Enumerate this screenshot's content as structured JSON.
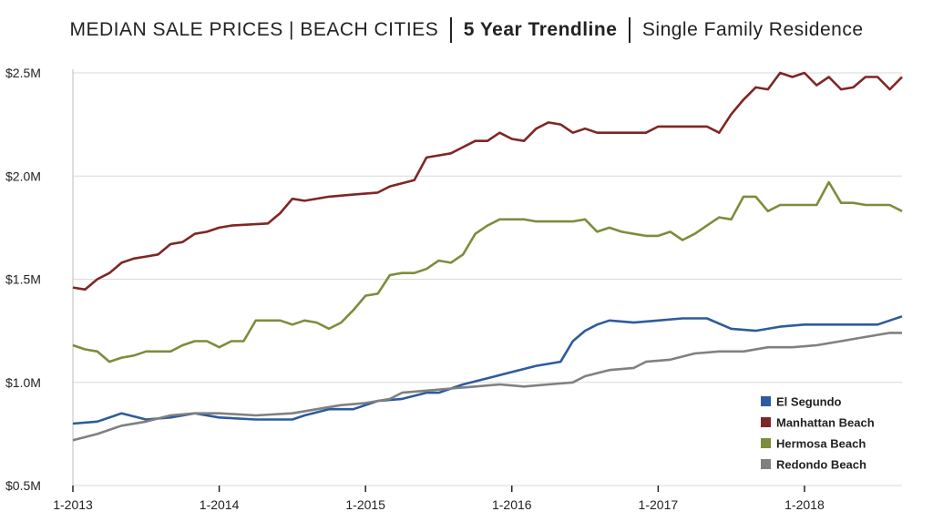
{
  "title": {
    "part1": "MEDIAN SALE PRICES | BEACH CITIES",
    "part2": "5 Year Trendline",
    "part3": "Single Family Residence"
  },
  "chart_data": {
    "type": "line",
    "title": "MEDIAN SALE PRICES | BEACH CITIES | 5 Year Trendline | Single Family Residence",
    "xlabel": "",
    "ylabel": "",
    "x_start": "2013-01",
    "x_end": "2018-09",
    "x_ticks": [
      {
        "value": "2013-01",
        "label": "1-2013"
      },
      {
        "value": "2014-01",
        "label": "1-2014"
      },
      {
        "value": "2015-01",
        "label": "1-2015"
      },
      {
        "value": "2016-01",
        "label": "1-2016"
      },
      {
        "value": "2017-01",
        "label": "1-2017"
      },
      {
        "value": "2018-01",
        "label": "1-2018"
      }
    ],
    "ylim": [
      0.5,
      2.5
    ],
    "y_ticks": [
      {
        "value": 2.5,
        "label": "$2.5M"
      },
      {
        "value": 2.0,
        "label": "$2.0M"
      },
      {
        "value": 1.5,
        "label": "$1.5M"
      },
      {
        "value": 1.0,
        "label": "$1.0M"
      },
      {
        "value": 0.5,
        "label": "$0.5M"
      }
    ],
    "grid": true,
    "legend": "bottom-right",
    "series": [
      {
        "name": "El Segundo",
        "color": "#2e5b9c",
        "points": [
          [
            "2013-01",
            0.8
          ],
          [
            "2013-03",
            0.81
          ],
          [
            "2013-05",
            0.85
          ],
          [
            "2013-07",
            0.82
          ],
          [
            "2013-09",
            0.83
          ],
          [
            "2013-11",
            0.85
          ],
          [
            "2014-01",
            0.83
          ],
          [
            "2014-04",
            0.82
          ],
          [
            "2014-07",
            0.82
          ],
          [
            "2014-08",
            0.84
          ],
          [
            "2014-10",
            0.87
          ],
          [
            "2014-12",
            0.87
          ],
          [
            "2015-02",
            0.91
          ],
          [
            "2015-04",
            0.92
          ],
          [
            "2015-06",
            0.95
          ],
          [
            "2015-07",
            0.95
          ],
          [
            "2015-09",
            0.99
          ],
          [
            "2015-11",
            1.02
          ],
          [
            "2016-01",
            1.05
          ],
          [
            "2016-03",
            1.08
          ],
          [
            "2016-05",
            1.1
          ],
          [
            "2016-06",
            1.2
          ],
          [
            "2016-07",
            1.25
          ],
          [
            "2016-08",
            1.28
          ],
          [
            "2016-09",
            1.3
          ],
          [
            "2016-11",
            1.29
          ],
          [
            "2017-01",
            1.3
          ],
          [
            "2017-03",
            1.31
          ],
          [
            "2017-05",
            1.31
          ],
          [
            "2017-07",
            1.26
          ],
          [
            "2017-09",
            1.25
          ],
          [
            "2017-11",
            1.27
          ],
          [
            "2018-01",
            1.28
          ],
          [
            "2018-03",
            1.28
          ],
          [
            "2018-05",
            1.28
          ],
          [
            "2018-07",
            1.28
          ],
          [
            "2018-08",
            1.3
          ],
          [
            "2018-09",
            1.32
          ]
        ]
      },
      {
        "name": "Manhattan Beach",
        "color": "#7f2624",
        "points": [
          [
            "2013-01",
            1.46
          ],
          [
            "2013-02",
            1.45
          ],
          [
            "2013-03",
            1.5
          ],
          [
            "2013-04",
            1.53
          ],
          [
            "2013-05",
            1.58
          ],
          [
            "2013-06",
            1.6
          ],
          [
            "2013-07",
            1.61
          ],
          [
            "2013-08",
            1.62
          ],
          [
            "2013-09",
            1.67
          ],
          [
            "2013-10",
            1.68
          ],
          [
            "2013-11",
            1.72
          ],
          [
            "2013-12",
            1.73
          ],
          [
            "2014-01",
            1.75
          ],
          [
            "2014-02",
            1.76
          ],
          [
            "2014-05",
            1.77
          ],
          [
            "2014-06",
            1.82
          ],
          [
            "2014-07",
            1.89
          ],
          [
            "2014-08",
            1.88
          ],
          [
            "2014-10",
            1.9
          ],
          [
            "2014-12",
            1.91
          ],
          [
            "2015-02",
            1.92
          ],
          [
            "2015-03",
            1.95
          ],
          [
            "2015-05",
            1.98
          ],
          [
            "2015-06",
            2.09
          ],
          [
            "2015-07",
            2.1
          ],
          [
            "2015-08",
            2.11
          ],
          [
            "2015-09",
            2.14
          ],
          [
            "2015-10",
            2.17
          ],
          [
            "2015-11",
            2.17
          ],
          [
            "2015-12",
            2.21
          ],
          [
            "2016-01",
            2.18
          ],
          [
            "2016-02",
            2.17
          ],
          [
            "2016-03",
            2.23
          ],
          [
            "2016-04",
            2.26
          ],
          [
            "2016-05",
            2.25
          ],
          [
            "2016-06",
            2.21
          ],
          [
            "2016-07",
            2.23
          ],
          [
            "2016-08",
            2.21
          ],
          [
            "2016-10",
            2.21
          ],
          [
            "2016-12",
            2.21
          ],
          [
            "2017-01",
            2.24
          ],
          [
            "2017-03",
            2.24
          ],
          [
            "2017-05",
            2.24
          ],
          [
            "2017-06",
            2.21
          ],
          [
            "2017-07",
            2.3
          ],
          [
            "2017-08",
            2.37
          ],
          [
            "2017-09",
            2.43
          ],
          [
            "2017-10",
            2.42
          ],
          [
            "2017-11",
            2.5
          ],
          [
            "2017-12",
            2.48
          ],
          [
            "2018-01",
            2.5
          ],
          [
            "2018-02",
            2.44
          ],
          [
            "2018-03",
            2.48
          ],
          [
            "2018-04",
            2.42
          ],
          [
            "2018-05",
            2.43
          ],
          [
            "2018-06",
            2.48
          ],
          [
            "2018-07",
            2.48
          ],
          [
            "2018-08",
            2.42
          ],
          [
            "2018-09",
            2.48
          ]
        ]
      },
      {
        "name": "Hermosa Beach",
        "color": "#7b8d3c",
        "points": [
          [
            "2013-01",
            1.18
          ],
          [
            "2013-02",
            1.16
          ],
          [
            "2013-03",
            1.15
          ],
          [
            "2013-04",
            1.1
          ],
          [
            "2013-05",
            1.12
          ],
          [
            "2013-06",
            1.13
          ],
          [
            "2013-07",
            1.15
          ],
          [
            "2013-08",
            1.15
          ],
          [
            "2013-09",
            1.15
          ],
          [
            "2013-10",
            1.18
          ],
          [
            "2013-11",
            1.2
          ],
          [
            "2013-12",
            1.2
          ],
          [
            "2014-01",
            1.17
          ],
          [
            "2014-02",
            1.2
          ],
          [
            "2014-03",
            1.2
          ],
          [
            "2014-04",
            1.3
          ],
          [
            "2014-05",
            1.3
          ],
          [
            "2014-06",
            1.3
          ],
          [
            "2014-07",
            1.28
          ],
          [
            "2014-08",
            1.3
          ],
          [
            "2014-09",
            1.29
          ],
          [
            "2014-10",
            1.26
          ],
          [
            "2014-11",
            1.29
          ],
          [
            "2014-12",
            1.35
          ],
          [
            "2015-01",
            1.42
          ],
          [
            "2015-02",
            1.43
          ],
          [
            "2015-03",
            1.52
          ],
          [
            "2015-04",
            1.53
          ],
          [
            "2015-05",
            1.53
          ],
          [
            "2015-06",
            1.55
          ],
          [
            "2015-07",
            1.59
          ],
          [
            "2015-08",
            1.58
          ],
          [
            "2015-09",
            1.62
          ],
          [
            "2015-10",
            1.72
          ],
          [
            "2015-11",
            1.76
          ],
          [
            "2015-12",
            1.79
          ],
          [
            "2016-01",
            1.79
          ],
          [
            "2016-02",
            1.79
          ],
          [
            "2016-03",
            1.78
          ],
          [
            "2016-04",
            1.78
          ],
          [
            "2016-05",
            1.78
          ],
          [
            "2016-06",
            1.78
          ],
          [
            "2016-07",
            1.79
          ],
          [
            "2016-08",
            1.73
          ],
          [
            "2016-09",
            1.75
          ],
          [
            "2016-10",
            1.73
          ],
          [
            "2016-11",
            1.72
          ],
          [
            "2016-12",
            1.71
          ],
          [
            "2017-01",
            1.71
          ],
          [
            "2017-02",
            1.73
          ],
          [
            "2017-03",
            1.69
          ],
          [
            "2017-04",
            1.72
          ],
          [
            "2017-05",
            1.76
          ],
          [
            "2017-06",
            1.8
          ],
          [
            "2017-07",
            1.79
          ],
          [
            "2017-08",
            1.9
          ],
          [
            "2017-09",
            1.9
          ],
          [
            "2017-10",
            1.83
          ],
          [
            "2017-11",
            1.86
          ],
          [
            "2017-12",
            1.86
          ],
          [
            "2018-01",
            1.86
          ],
          [
            "2018-02",
            1.86
          ],
          [
            "2018-03",
            1.97
          ],
          [
            "2018-04",
            1.87
          ],
          [
            "2018-05",
            1.87
          ],
          [
            "2018-06",
            1.86
          ],
          [
            "2018-07",
            1.86
          ],
          [
            "2018-08",
            1.86
          ],
          [
            "2018-09",
            1.83
          ]
        ]
      },
      {
        "name": "Redondo Beach",
        "color": "#808080",
        "points": [
          [
            "2013-01",
            0.72
          ],
          [
            "2013-03",
            0.75
          ],
          [
            "2013-05",
            0.79
          ],
          [
            "2013-07",
            0.81
          ],
          [
            "2013-09",
            0.84
          ],
          [
            "2013-11",
            0.85
          ],
          [
            "2014-01",
            0.85
          ],
          [
            "2014-04",
            0.84
          ],
          [
            "2014-07",
            0.85
          ],
          [
            "2014-09",
            0.87
          ],
          [
            "2014-11",
            0.89
          ],
          [
            "2015-01",
            0.9
          ],
          [
            "2015-03",
            0.92
          ],
          [
            "2015-04",
            0.95
          ],
          [
            "2015-06",
            0.96
          ],
          [
            "2015-08",
            0.97
          ],
          [
            "2015-10",
            0.98
          ],
          [
            "2015-12",
            0.99
          ],
          [
            "2016-02",
            0.98
          ],
          [
            "2016-04",
            0.99
          ],
          [
            "2016-06",
            1.0
          ],
          [
            "2016-07",
            1.03
          ],
          [
            "2016-09",
            1.06
          ],
          [
            "2016-11",
            1.07
          ],
          [
            "2016-12",
            1.1
          ],
          [
            "2017-02",
            1.11
          ],
          [
            "2017-04",
            1.14
          ],
          [
            "2017-06",
            1.15
          ],
          [
            "2017-08",
            1.15
          ],
          [
            "2017-10",
            1.17
          ],
          [
            "2017-12",
            1.17
          ],
          [
            "2018-02",
            1.18
          ],
          [
            "2018-04",
            1.2
          ],
          [
            "2018-06",
            1.22
          ],
          [
            "2018-08",
            1.24
          ],
          [
            "2018-09",
            1.24
          ]
        ]
      }
    ]
  }
}
